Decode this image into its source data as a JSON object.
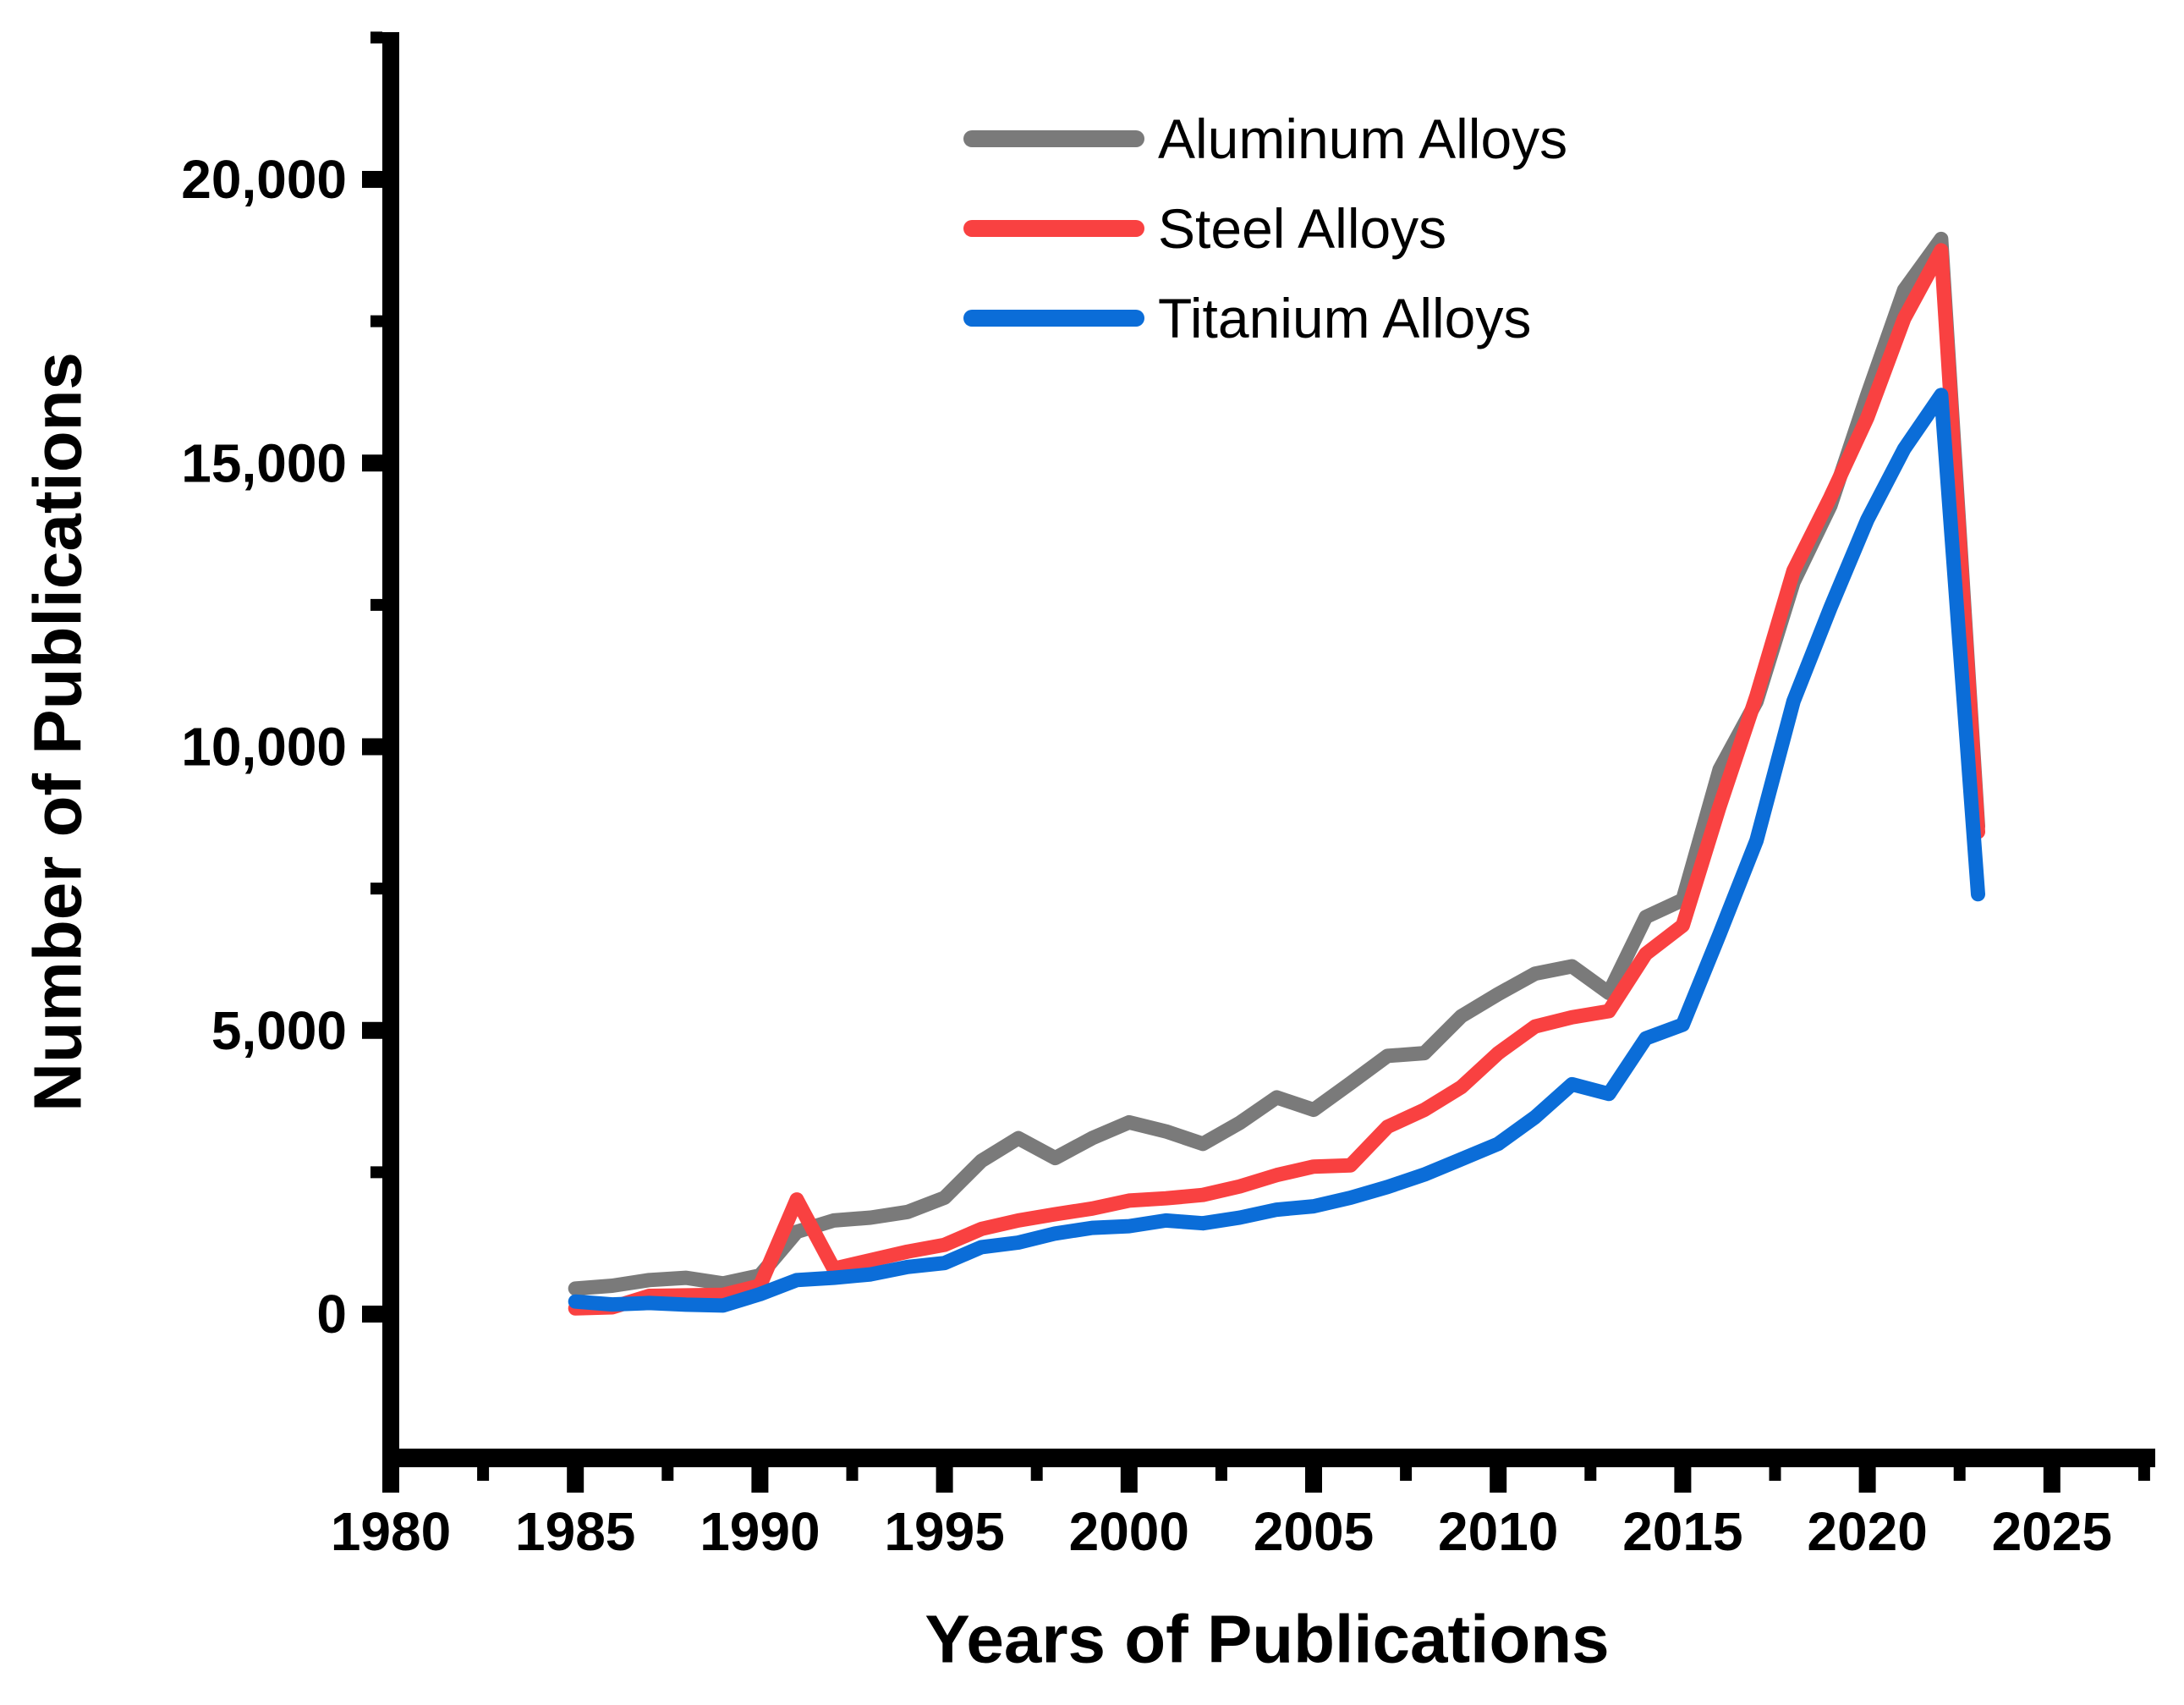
{
  "chart_data": {
    "type": "line",
    "title": "",
    "xlabel": "Years of Publications",
    "ylabel": "Number of Publications",
    "grid": false,
    "legend_position": "top-center",
    "x": [
      1985,
      1986,
      1987,
      1988,
      1989,
      1990,
      1991,
      1992,
      1993,
      1994,
      1995,
      1996,
      1997,
      1998,
      1999,
      2000,
      2001,
      2002,
      2003,
      2004,
      2005,
      2006,
      2007,
      2008,
      2009,
      2010,
      2011,
      2012,
      2013,
      2014,
      2015,
      2016,
      2017,
      2018,
      2019,
      2020,
      2021,
      2022,
      2023
    ],
    "series": [
      {
        "name": "Aluminum Alloys",
        "color": "#7a7a7a",
        "values": [
          450,
          500,
          600,
          640,
          540,
          680,
          1450,
          1650,
          1700,
          1800,
          2050,
          2700,
          3100,
          2750,
          3100,
          3380,
          3220,
          3000,
          3370,
          3820,
          3600,
          4070,
          4550,
          4600,
          5250,
          5640,
          6000,
          6130,
          5660,
          7000,
          7300,
          9600,
          10800,
          12900,
          14250,
          16200,
          18050,
          18950,
          8600
        ]
      },
      {
        "name": "Steel Alloys",
        "color": "#f94141",
        "values": [
          100,
          120,
          320,
          330,
          340,
          500,
          2020,
          800,
          950,
          1100,
          1220,
          1500,
          1650,
          1760,
          1860,
          2000,
          2040,
          2100,
          2250,
          2450,
          2600,
          2620,
          3300,
          3600,
          4000,
          4600,
          5070,
          5230,
          5340,
          6350,
          6850,
          8950,
          10900,
          13100,
          14400,
          15800,
          17550,
          18750,
          8500
        ]
      },
      {
        "name": "Titanium Alloys",
        "color": "#0b6dd8",
        "values": [
          220,
          170,
          195,
          165,
          150,
          350,
          600,
          640,
          700,
          830,
          900,
          1180,
          1260,
          1420,
          1520,
          1550,
          1650,
          1600,
          1700,
          1840,
          1900,
          2050,
          2240,
          2460,
          2730,
          3000,
          3470,
          4050,
          3880,
          4860,
          5100,
          6700,
          8350,
          10800,
          12450,
          14000,
          15250,
          16200,
          7400
        ]
      }
    ],
    "x_axis": {
      "min": 1979.7,
      "max": 2027.8,
      "major_ticks": [
        1980,
        1985,
        1990,
        1995,
        2000,
        2005,
        2010,
        2015,
        2020,
        2025
      ],
      "tick_labels": [
        "1980",
        "1985",
        "1990",
        "1995",
        "2000",
        "2005",
        "2010",
        "2015",
        "2020",
        "2025"
      ],
      "minor_ticks": [
        1982.5,
        1987.5,
        1992.5,
        1997.5,
        2002.5,
        2007.5,
        2012.5,
        2017.5,
        2022.5,
        2027.5
      ]
    },
    "y_axis": {
      "min": -2535,
      "max": 22600,
      "major_ticks": [
        0,
        5000,
        10000,
        15000,
        20000
      ],
      "tick_labels": [
        "0",
        "5,000",
        "10,000",
        "15,000",
        "20,000"
      ],
      "minor_ticks": [
        2500,
        7500,
        12500,
        17500,
        22500
      ]
    }
  }
}
